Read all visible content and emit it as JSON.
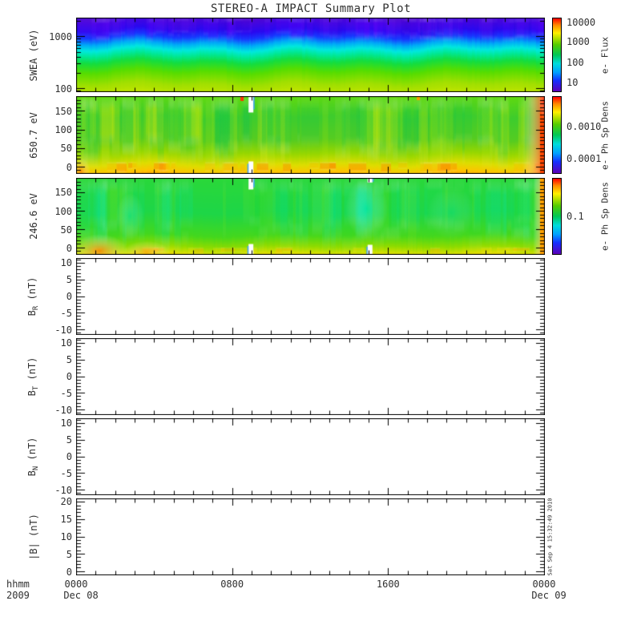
{
  "annotations": {
    "timestamp": "Sat Sep 4 15:32:49 2010"
  },
  "chart_data": {
    "type": "heatmap",
    "title": "STEREO-A IMPACT Summary Plot",
    "time_axis": {
      "units_label": "hhmm",
      "year": "2009",
      "hours_total": 24,
      "minor_step_hours": 1,
      "major_step_hours": 8,
      "ticks": [
        {
          "hour": 0,
          "label": "0000",
          "sublabel": "Dec 08"
        },
        {
          "hour": 8,
          "label": "0800"
        },
        {
          "hour": 16,
          "label": "1600"
        },
        {
          "hour": 24,
          "label": "0000",
          "sublabel": "Dec 09"
        }
      ]
    },
    "colorbar_gradient": [
      [
        0,
        "#ff0000"
      ],
      [
        0.09,
        "#ff8800"
      ],
      [
        0.2,
        "#fff000"
      ],
      [
        0.36,
        "#55cc00"
      ],
      [
        0.5,
        "#00c855"
      ],
      [
        0.62,
        "#00dcdc"
      ],
      [
        0.74,
        "#00a0ff"
      ],
      [
        0.85,
        "#1430ff"
      ],
      [
        1,
        "#5c00b8"
      ]
    ],
    "panels": [
      {
        "key": "swea",
        "kind": "spectrogram",
        "ylabel": {
          "pre": "SWEA (eV)",
          "sub": "",
          "post": ""
        },
        "yscale": "log",
        "ymin": 88,
        "ymax": 2300,
        "ymajor": [
          100,
          1000
        ],
        "yminor": [
          90,
          200,
          300,
          400,
          500,
          600,
          700,
          800,
          900,
          2000
        ],
        "ylabels": [
          {
            "v": 1000,
            "t": "1000"
          },
          {
            "v": 100,
            "t": "100"
          }
        ],
        "colorbar": {
          "title": "e- Flux",
          "labels": [
            {
              "f": 0.065,
              "t": "10000"
            },
            {
              "f": 0.32,
              "t": "1000"
            },
            {
              "f": 0.6,
              "t": "100"
            },
            {
              "f": 0.87,
              "t": "10"
            }
          ]
        },
        "paint": {
          "seed": 7,
          "base": [
            [
              0,
              "#5a08c8"
            ],
            [
              0.1,
              "#4406e0"
            ],
            [
              0.2,
              "#2a08f0"
            ],
            [
              0.28,
              "#1838ff"
            ],
            [
              0.36,
              "#00a8f8"
            ],
            [
              0.43,
              "#00e8e0"
            ],
            [
              0.5,
              "#00e896"
            ],
            [
              0.58,
              "#14dd40"
            ],
            [
              0.7,
              "#58dd00"
            ],
            [
              0.85,
              "#a2e000"
            ],
            [
              1,
              "#c8e400"
            ]
          ],
          "wave": {
            "amp": 2.2,
            "freq": 0.065
          },
          "streaks": {
            "count": 80,
            "band": [
              0,
              0.34
            ],
            "colors": [
              "rgba(100,0,255,0.20)",
              "rgba(50,0,215,0.14)",
              "rgba(140,30,255,0.10)"
            ]
          },
          "features": []
        }
      },
      {
        "key": "e650",
        "kind": "spectrogram",
        "ylabel": {
          "pre": "650.7 eV",
          "sub": "",
          "post": ""
        },
        "yscale": "linear",
        "ymin": -18,
        "ymax": 190,
        "ymajor": [
          0,
          50,
          100,
          150
        ],
        "yminor": [
          -10,
          10,
          20,
          30,
          40,
          60,
          70,
          80,
          90,
          110,
          120,
          130,
          140,
          160,
          170,
          180
        ],
        "ylabels": [
          {
            "v": 150,
            "t": "150"
          },
          {
            "v": 100,
            "t": "100"
          },
          {
            "v": 50,
            "t": "50"
          },
          {
            "v": 0,
            "t": "0"
          }
        ],
        "colorbar": {
          "title": "e- Ph Sp Dens",
          "labels": [
            {
              "f": 0.39,
              "t": "0.0010"
            },
            {
              "f": 0.8,
              "t": "0.0001"
            }
          ]
        },
        "paint": {
          "seed": 11,
          "base": [
            [
              0,
              "#6fdc00"
            ],
            [
              0.08,
              "#5cd814"
            ],
            [
              0.3,
              "#3ecc2e"
            ],
            [
              0.55,
              "#55cc22"
            ],
            [
              0.72,
              "#9ad800"
            ],
            [
              0.84,
              "#dede00"
            ],
            [
              0.93,
              "#ffc400"
            ],
            [
              1,
              "#ff9400"
            ]
          ],
          "wave": {
            "amp": 1.6,
            "freq": 0.05
          },
          "streaks": {
            "count": 110,
            "band": [
              0,
              1
            ],
            "colors": [
              "rgba(255,240,0,0.20)",
              "rgba(20,200,70,0.20)",
              "rgba(190,235,0,0.16)",
              "rgba(0,190,90,0.13)"
            ]
          },
          "features": [
            {
              "type": "streakband",
              "band": [
                0.84,
                1
              ],
              "count": 28,
              "colors": [
                "rgba(255,130,0,0.40)",
                "rgba(255,180,0,0.30)"
              ]
            },
            {
              "type": "vband",
              "x0": 0.952,
              "x1": 1,
              "color": "#ff4800"
            },
            {
              "type": "blob",
              "x": 0.999,
              "y": 0.05,
              "rx": 0.012,
              "ry": 0.25,
              "color": "rgba(255,30,0,0.85)"
            },
            {
              "type": "blob",
              "x": 0.01,
              "y": 0.97,
              "rx": 0.02,
              "ry": 0.18,
              "color": "rgba(255,110,0,0.6)"
            },
            {
              "type": "dot",
              "x": 0.354,
              "color": "#ff3200",
              "h": 3
            },
            {
              "type": "dot",
              "x": 0.73,
              "color": "#ff9900",
              "h": 2
            },
            {
              "type": "gap",
              "x": 0.373,
              "top": 0.2,
              "bottom": 0.15,
              "edge": "#3fa0ff"
            }
          ]
        }
      },
      {
        "key": "e246",
        "kind": "spectrogram",
        "ylabel": {
          "pre": "246.6 eV",
          "sub": "",
          "post": ""
        },
        "yscale": "linear",
        "ymin": -18,
        "ymax": 190,
        "ymajor": [
          0,
          50,
          100,
          150
        ],
        "yminor": [
          -10,
          10,
          20,
          30,
          40,
          60,
          70,
          80,
          90,
          110,
          120,
          130,
          140,
          160,
          170,
          180
        ],
        "ylabels": [
          {
            "v": 150,
            "t": "150"
          },
          {
            "v": 100,
            "t": "100"
          },
          {
            "v": 50,
            "t": "50"
          },
          {
            "v": 0,
            "t": "0"
          }
        ],
        "colorbar": {
          "title": "e- Ph Sp Dens",
          "labels": [
            {
              "f": 0.5,
              "t": "0.1"
            }
          ]
        },
        "paint": {
          "seed": 23,
          "base": [
            [
              0,
              "#2cd838"
            ],
            [
              0.45,
              "#1ed648"
            ],
            [
              0.72,
              "#44d81e"
            ],
            [
              0.85,
              "#90dc00"
            ],
            [
              0.93,
              "#d8e000"
            ],
            [
              1,
              "#ffc800"
            ]
          ],
          "wave": {
            "amp": 1.4,
            "freq": 0.045
          },
          "streaks": {
            "count": 90,
            "band": [
              0,
              1
            ],
            "colors": [
              "rgba(0,225,150,0.16)",
              "rgba(40,215,40,0.18)",
              "rgba(180,235,0,0.10)",
              "rgba(0,235,215,0.13)"
            ]
          },
          "features": [
            {
              "type": "blob",
              "x": 0.62,
              "y": 0.4,
              "rx": 0.045,
              "ry": 0.4,
              "color": "rgba(0,240,210,0.45)"
            },
            {
              "type": "blob",
              "x": 0.115,
              "y": 0.5,
              "rx": 0.03,
              "ry": 0.3,
              "color": "rgba(0,235,190,0.35)"
            },
            {
              "type": "blob",
              "x": 0.8,
              "y": 0.45,
              "rx": 0.05,
              "ry": 0.35,
              "color": "rgba(0,230,190,0.25)"
            },
            {
              "type": "streakband",
              "band": [
                0.9,
                1
              ],
              "count": 18,
              "colors": [
                "rgba(255,180,0,0.35)",
                "rgba(240,220,0,0.30)"
              ]
            },
            {
              "type": "blob",
              "x": 0.05,
              "y": 0.95,
              "rx": 0.06,
              "ry": 0.22,
              "color": "rgba(255,120,0,0.75)"
            },
            {
              "type": "blob",
              "x": 0.15,
              "y": 0.97,
              "rx": 0.05,
              "ry": 0.15,
              "color": "rgba(255,150,0,0.6)"
            },
            {
              "type": "vband",
              "x0": 0.975,
              "x1": 1,
              "color": "#ffa000"
            },
            {
              "type": "gap",
              "x": 0.373,
              "top": 0.14,
              "bottom": 0.13,
              "edge": "#3fa0ff"
            },
            {
              "type": "gap",
              "x": 0.627,
              "top": 0.05,
              "bottom": 0.12,
              "edge": "#3fa0ff"
            }
          ]
        }
      },
      {
        "key": "br",
        "kind": "line",
        "ylabel": {
          "pre": "B",
          "sub": "R",
          "post": " (nT)"
        },
        "yscale": "linear",
        "ymin": -11.5,
        "ymax": 11.5,
        "ymajor": [
          -10,
          -5,
          0,
          5,
          10
        ],
        "yminor": [
          -11,
          -9,
          -8,
          -7,
          -6,
          -4,
          -3,
          -2,
          -1,
          1,
          2,
          3,
          4,
          6,
          7,
          8,
          9,
          11
        ],
        "ylabels": [
          {
            "v": 10,
            "t": "10"
          },
          {
            "v": 5,
            "t": "5"
          },
          {
            "v": 0,
            "t": "0"
          },
          {
            "v": -5,
            "t": "-5"
          },
          {
            "v": -10,
            "t": "-10"
          }
        ],
        "series": []
      },
      {
        "key": "bt",
        "kind": "line",
        "ylabel": {
          "pre": "B",
          "sub": "T",
          "post": " (nT)"
        },
        "yscale": "linear",
        "ymin": -11.5,
        "ymax": 11.5,
        "ymajor": [
          -10,
          -5,
          0,
          5,
          10
        ],
        "yminor": [
          -11,
          -9,
          -8,
          -7,
          -6,
          -4,
          -3,
          -2,
          -1,
          1,
          2,
          3,
          4,
          6,
          7,
          8,
          9,
          11
        ],
        "ylabels": [
          {
            "v": 10,
            "t": "10"
          },
          {
            "v": 5,
            "t": "5"
          },
          {
            "v": 0,
            "t": "0"
          },
          {
            "v": -5,
            "t": "-5"
          },
          {
            "v": -10,
            "t": "-10"
          }
        ],
        "series": []
      },
      {
        "key": "bn",
        "kind": "line",
        "ylabel": {
          "pre": "B",
          "sub": "N",
          "post": " (nT)"
        },
        "yscale": "linear",
        "ymin": -11.5,
        "ymax": 11.5,
        "ymajor": [
          -10,
          -5,
          0,
          5,
          10
        ],
        "yminor": [
          -11,
          -9,
          -8,
          -7,
          -6,
          -4,
          -3,
          -2,
          -1,
          1,
          2,
          3,
          4,
          6,
          7,
          8,
          9,
          11
        ],
        "ylabels": [
          {
            "v": 10,
            "t": "10"
          },
          {
            "v": 5,
            "t": "5"
          },
          {
            "v": 0,
            "t": "0"
          },
          {
            "v": -5,
            "t": "-5"
          },
          {
            "v": -10,
            "t": "-10"
          }
        ],
        "series": []
      },
      {
        "key": "bmag",
        "kind": "line",
        "ylabel": {
          "pre": "|B| (nT)",
          "sub": "",
          "post": ""
        },
        "yscale": "linear",
        "ymin": -1,
        "ymax": 21,
        "ymajor": [
          0,
          5,
          10,
          15,
          20
        ],
        "yminor": [
          1,
          2,
          3,
          4,
          6,
          7,
          8,
          9,
          11,
          12,
          13,
          14,
          16,
          17,
          18,
          19
        ],
        "ylabels": [
          {
            "v": 20,
            "t": "20"
          },
          {
            "v": 15,
            "t": "15"
          },
          {
            "v": 10,
            "t": "10"
          },
          {
            "v": 5,
            "t": "5"
          },
          {
            "v": 0,
            "t": "0"
          }
        ],
        "series": []
      }
    ]
  }
}
